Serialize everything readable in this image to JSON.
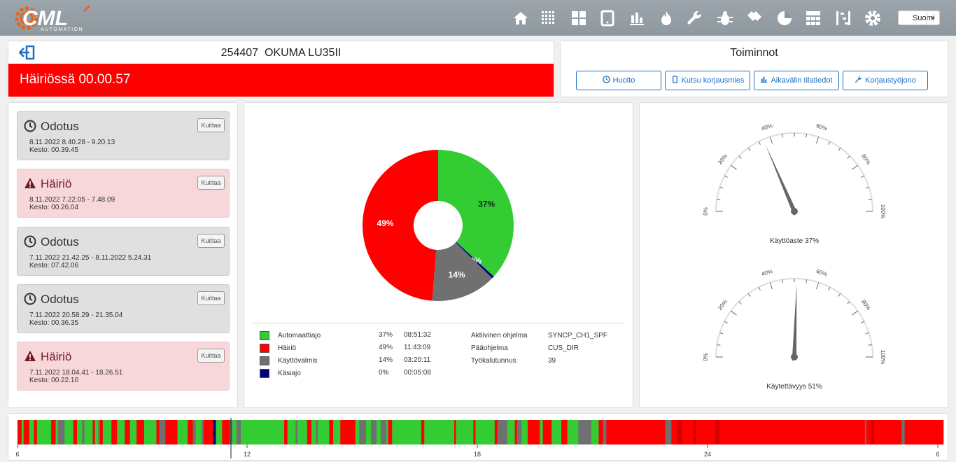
{
  "brand": {
    "logo_text": "CML",
    "logo_sub": "AUTOMATION"
  },
  "nav_icons": [
    "home-icon",
    "grid-dots-icon",
    "dashboard-icon",
    "tablet-icon",
    "bar-chart-icon",
    "flame-icon",
    "wrench-icon",
    "bug-icon",
    "tags-icon",
    "pie-chart-icon",
    "calculator-icon",
    "list-tree-icon",
    "gear-icon"
  ],
  "language": "Suomi",
  "machine": {
    "id": "254407",
    "name": "OKUMA LU35II"
  },
  "alarm": {
    "text": "Häiriössä 00.00.57",
    "color": "#ff0000"
  },
  "toiminnot": {
    "title": "Toiminnot",
    "buttons": [
      {
        "label": "Huolto",
        "icon": "clock-icon"
      },
      {
        "label": "Kutsu korjausmies",
        "icon": "phone-icon"
      },
      {
        "label": "Aikavälin tilatiedot",
        "icon": "bar-chart-icon"
      },
      {
        "label": "Korjaustyöjono",
        "icon": "wrench-icon"
      }
    ]
  },
  "events": [
    {
      "type": "wait",
      "title": "Odotus",
      "range": "8.11.2022 8.40.28 - 9.20.13",
      "duration": "Kesto: 00.39.45",
      "ack": "Kuittaa"
    },
    {
      "type": "fault",
      "title": "Häiriö",
      "range": "8.11.2022 7.22.05 - 7.48.09",
      "duration": "Kesto: 00.26.04",
      "ack": "Kuittaa"
    },
    {
      "type": "wait",
      "title": "Odotus",
      "range": "7.11.2022 21.42.25 - 8.11.2022 5.24.31",
      "duration": "Kesto: 07.42.06",
      "ack": "Kuittaa"
    },
    {
      "type": "wait",
      "title": "Odotus",
      "range": "7.11.2022 20.58.29 - 21.35.04",
      "duration": "Kesto: 00.36.35",
      "ack": "Kuittaa"
    },
    {
      "type": "fault",
      "title": "Häiriö",
      "range": "7.11.2022 18.04.41 - 18.26.51",
      "duration": "Kesto: 00.22.10",
      "ack": "Kuittaa"
    }
  ],
  "chart_data": {
    "type": "pie",
    "donut": true,
    "slices": [
      {
        "name": "Automaattiajo",
        "percent": 37,
        "label": "37%",
        "time": "08:51:32",
        "color": "#33cc33"
      },
      {
        "name": "Käsiajo",
        "percent": 0.5,
        "label": "0%",
        "time": "00:05:08",
        "color": "#000080"
      },
      {
        "name": "Käyttövalmis",
        "percent": 14,
        "label": "14%",
        "time": "03:20:11",
        "color": "#707070"
      },
      {
        "name": "Häiriö",
        "percent": 49,
        "label": "49%",
        "time": "11:43:09",
        "color": "#ff0000"
      }
    ]
  },
  "legend": [
    {
      "name": "Automaattiajo",
      "pct": "37%",
      "time": "08:51:32",
      "color": "#33cc33"
    },
    {
      "name": "Häiriö",
      "pct": "49%",
      "time": "11:43:09",
      "color": "#ff0000"
    },
    {
      "name": "Käyttövalmis",
      "pct": "14%",
      "time": "03:20:11",
      "color": "#707070"
    },
    {
      "name": "Käsiajo",
      "pct": "0%",
      "time": "00:05:08",
      "color": "#000080"
    }
  ],
  "program_info": [
    {
      "label": "Aktiivinen ohjelma",
      "value": "SYNCP_CH1_SPF"
    },
    {
      "label": "Pääohjelma",
      "value": "CUS_DIR"
    },
    {
      "label": "Työkalutunnus",
      "value": "39"
    }
  ],
  "gauges": [
    {
      "label": "Käyttöaste 37%",
      "value": 37,
      "ticks": [
        "0%",
        "20%",
        "40%",
        "60%",
        "80%",
        "100%"
      ]
    },
    {
      "label": "Käytettävyys 51%",
      "value": 51,
      "ticks": [
        "0%",
        "20%",
        "40%",
        "60%",
        "80%",
        "100%"
      ]
    }
  ],
  "timeline": {
    "ticks": [
      "6",
      "12",
      "18",
      "24",
      "6"
    ],
    "colors": {
      "run": "#33cc33",
      "fault": "#ff0000",
      "idle": "#707070",
      "manual": "#000080"
    }
  }
}
